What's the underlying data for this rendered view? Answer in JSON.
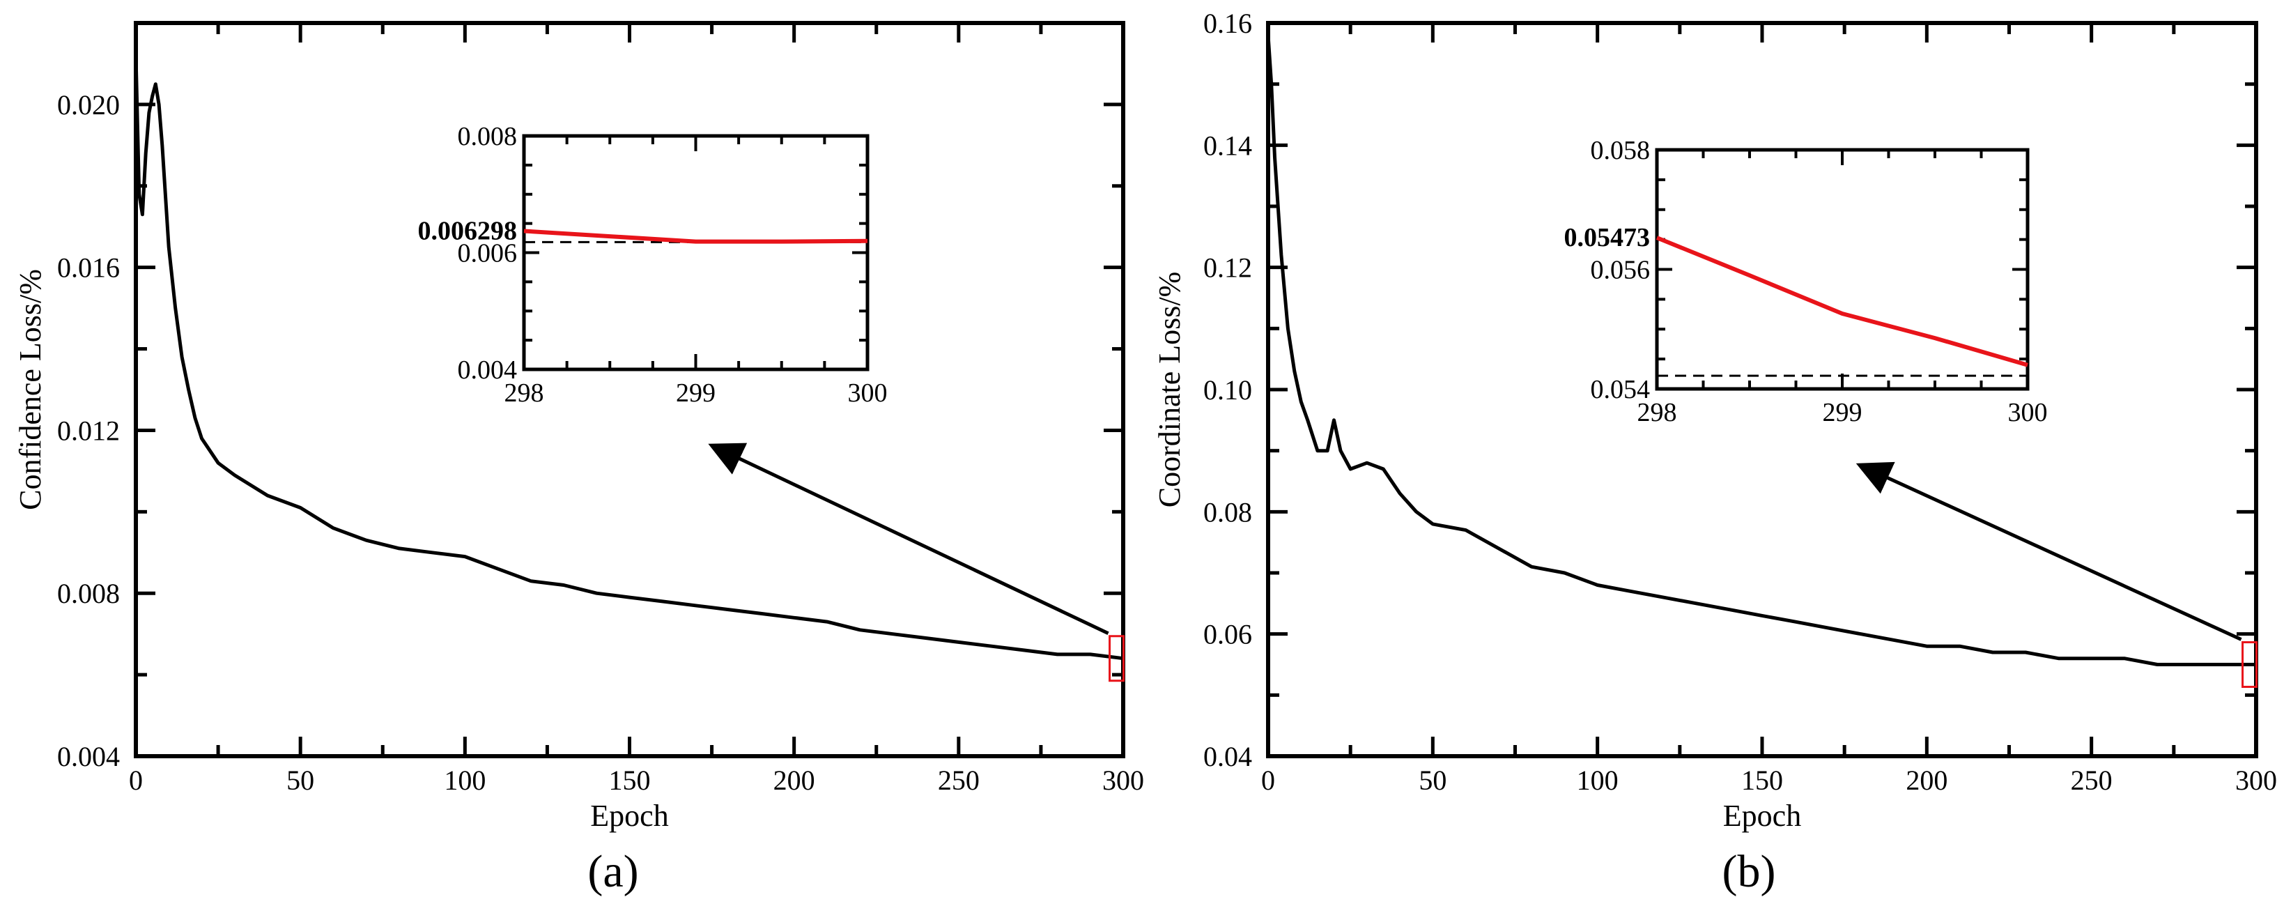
{
  "chart_data": [
    {
      "type": "line",
      "panel_label": "(a)",
      "xlabel": "Epoch",
      "ylabel": "Confidence Loss/%",
      "xlim": [
        0,
        300
      ],
      "ylim": [
        0.004,
        0.022
      ],
      "xticks": [
        "0",
        "50",
        "100",
        "150",
        "200",
        "250",
        "300"
      ],
      "yticks": [
        "0.004",
        "0.008",
        "0.012",
        "0.016",
        "0.020"
      ],
      "series": [
        {
          "color": "#000000",
          "x": [
            0,
            1,
            2,
            3,
            4,
            5,
            6,
            7,
            8,
            10,
            12,
            14,
            16,
            18,
            20,
            25,
            30,
            40,
            50,
            60,
            70,
            80,
            90,
            100,
            110,
            120,
            130,
            140,
            150,
            160,
            170,
            180,
            190,
            200,
            210,
            220,
            230,
            240,
            250,
            260,
            270,
            280,
            290,
            300
          ],
          "y": [
            0.0212,
            0.0178,
            0.0173,
            0.0188,
            0.0198,
            0.0202,
            0.0205,
            0.02,
            0.019,
            0.0165,
            0.015,
            0.0138,
            0.013,
            0.0123,
            0.0118,
            0.0112,
            0.0109,
            0.0104,
            0.0101,
            0.0096,
            0.0093,
            0.0091,
            0.009,
            0.0089,
            0.0086,
            0.0083,
            0.0082,
            0.008,
            0.0079,
            0.0078,
            0.0077,
            0.0076,
            0.0075,
            0.0074,
            0.0073,
            0.0071,
            0.007,
            0.0069,
            0.0068,
            0.0067,
            0.0066,
            0.0065,
            0.0065,
            0.0064
          ]
        }
      ],
      "highlight_box_x": [
        298,
        300
      ],
      "inset": {
        "xlim": [
          298,
          300
        ],
        "ylim": [
          0.004,
          0.008
        ],
        "xticks": [
          "298",
          "299",
          "300"
        ],
        "yticks": [
          "0.004",
          "0.006",
          "0.008"
        ],
        "highlight_label": "0.006298",
        "reference_y": 0.00618,
        "series": [
          {
            "color": "#e8141a",
            "x": [
              298,
              298.5,
              299,
              299.5,
              300
            ],
            "y": [
              0.00637,
              0.00628,
              0.00619,
              0.00619,
              0.0062
            ]
          }
        ]
      }
    },
    {
      "type": "line",
      "panel_label": "(b)",
      "xlabel": "Epoch",
      "ylabel": "Coordinate Loss/%",
      "xlim": [
        0,
        300
      ],
      "ylim": [
        0.04,
        0.16
      ],
      "xticks": [
        "0",
        "50",
        "100",
        "150",
        "200",
        "250",
        "300"
      ],
      "yticks": [
        "0.04",
        "0.06",
        "0.08",
        "0.10",
        "0.12",
        "0.14",
        "0.16"
      ],
      "series": [
        {
          "color": "#000000",
          "x": [
            0,
            1,
            2,
            4,
            6,
            8,
            10,
            12,
            15,
            18,
            20,
            22,
            25,
            30,
            35,
            40,
            45,
            50,
            60,
            70,
            80,
            90,
            100,
            110,
            120,
            130,
            140,
            150,
            160,
            170,
            180,
            190,
            200,
            210,
            220,
            230,
            240,
            250,
            260,
            270,
            280,
            290,
            300
          ],
          "y": [
            0.158,
            0.15,
            0.138,
            0.122,
            0.11,
            0.103,
            0.098,
            0.095,
            0.09,
            0.09,
            0.095,
            0.09,
            0.087,
            0.088,
            0.087,
            0.083,
            0.08,
            0.078,
            0.077,
            0.074,
            0.071,
            0.07,
            0.068,
            0.067,
            0.066,
            0.065,
            0.064,
            0.063,
            0.062,
            0.061,
            0.06,
            0.059,
            0.058,
            0.058,
            0.057,
            0.057,
            0.056,
            0.056,
            0.056,
            0.055,
            0.055,
            0.055,
            0.055
          ]
        }
      ],
      "highlight_box_x": [
        298,
        300
      ],
      "inset": {
        "xlim": [
          298,
          300
        ],
        "ylim": [
          0.054,
          0.058
        ],
        "xticks": [
          "298",
          "299",
          "300"
        ],
        "yticks": [
          "0.054",
          "0.056",
          "0.058"
        ],
        "highlight_label": "0.05473",
        "reference_y": 0.05422,
        "series": [
          {
            "color": "#e8141a",
            "x": [
              298,
              298.5,
              299,
              299.5,
              300
            ],
            "y": [
              0.05653,
              0.0559,
              0.05526,
              0.05485,
              0.0544
            ]
          }
        ]
      }
    }
  ]
}
